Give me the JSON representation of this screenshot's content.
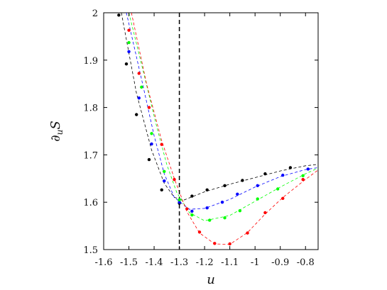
{
  "chart_data": {
    "type": "scatter",
    "title": "",
    "xlabel": "u",
    "ylabel": "∂uS",
    "ylabel_parts": {
      "main": "∂",
      "sub": "u",
      "tail": "S"
    },
    "xlim": [
      -1.6,
      -0.75
    ],
    "ylim": [
      1.5,
      2.0
    ],
    "x_ticks": [
      -1.6,
      -1.5,
      -1.4,
      -1.3,
      -1.2,
      -1.1,
      -1.0,
      -0.9,
      -0.8
    ],
    "x_tick_labels": [
      "-1.6",
      "-1.5",
      "-1.4",
      "-1.3",
      "-1.2",
      "-1.1",
      "-1",
      "-0.9",
      "-0.8"
    ],
    "y_ticks": [
      1.5,
      1.6,
      1.7,
      1.8,
      1.9,
      2.0
    ],
    "y_tick_labels": [
      "1.5",
      "1.6",
      "1.7",
      "1.8",
      "1.9",
      "2"
    ],
    "vertical_line": {
      "x": -1.3,
      "style": "dashed",
      "color": "#000000"
    },
    "grid": false,
    "series": [
      {
        "color": "#000000",
        "points": [
          [
            -1.54,
            1.995
          ],
          [
            -1.51,
            1.892
          ],
          [
            -1.47,
            1.785
          ],
          [
            -1.42,
            1.69
          ],
          [
            -1.37,
            1.626
          ],
          [
            -1.3,
            1.598
          ],
          [
            -1.25,
            1.613
          ],
          [
            -1.19,
            1.626
          ],
          [
            -1.12,
            1.635
          ],
          [
            -1.05,
            1.646
          ],
          [
            -0.96,
            1.66
          ],
          [
            -0.86,
            1.673
          ]
        ],
        "curve": [
          [
            -1.53,
            2.0
          ],
          [
            -1.47,
            1.83
          ],
          [
            -1.41,
            1.71
          ],
          [
            -1.36,
            1.64
          ],
          [
            -1.32,
            1.61
          ],
          [
            -1.28,
            1.605
          ],
          [
            -1.2,
            1.622
          ],
          [
            -1.1,
            1.638
          ],
          [
            -1.0,
            1.652
          ],
          [
            -0.9,
            1.666
          ],
          [
            -0.8,
            1.677
          ],
          [
            -0.75,
            1.68
          ]
        ]
      },
      {
        "color": "#0000ff",
        "points": [
          [
            -1.5,
            1.918
          ],
          [
            -1.46,
            1.82
          ],
          [
            -1.41,
            1.723
          ],
          [
            -1.36,
            1.645
          ],
          [
            -1.3,
            1.6
          ],
          [
            -1.25,
            1.581
          ],
          [
            -1.19,
            1.588
          ],
          [
            -1.13,
            1.6
          ],
          [
            -1.07,
            1.617
          ],
          [
            -0.99,
            1.635
          ],
          [
            -0.89,
            1.657
          ],
          [
            -0.79,
            1.67
          ]
        ],
        "curve": [
          [
            -1.51,
            2.0
          ],
          [
            -1.45,
            1.86
          ],
          [
            -1.4,
            1.74
          ],
          [
            -1.36,
            1.66
          ],
          [
            -1.32,
            1.61
          ],
          [
            -1.26,
            1.585
          ],
          [
            -1.2,
            1.587
          ],
          [
            -1.1,
            1.606
          ],
          [
            -1.0,
            1.632
          ],
          [
            -0.9,
            1.654
          ],
          [
            -0.8,
            1.669
          ],
          [
            -0.75,
            1.673
          ]
        ]
      },
      {
        "color": "#00ff00",
        "points": [
          [
            -1.5,
            1.937
          ],
          [
            -1.45,
            1.843
          ],
          [
            -1.41,
            1.745
          ],
          [
            -1.36,
            1.665
          ],
          [
            -1.3,
            1.605
          ],
          [
            -1.25,
            1.573
          ],
          [
            -1.18,
            1.562
          ],
          [
            -1.12,
            1.567
          ],
          [
            -1.06,
            1.582
          ],
          [
            -0.99,
            1.607
          ],
          [
            -0.91,
            1.628
          ],
          [
            -0.81,
            1.656
          ]
        ],
        "curve": [
          [
            -1.5,
            2.0
          ],
          [
            -1.44,
            1.87
          ],
          [
            -1.39,
            1.76
          ],
          [
            -1.35,
            1.68
          ],
          [
            -1.31,
            1.62
          ],
          [
            -1.26,
            1.578
          ],
          [
            -1.2,
            1.561
          ],
          [
            -1.1,
            1.572
          ],
          [
            -1.0,
            1.602
          ],
          [
            -0.9,
            1.632
          ],
          [
            -0.8,
            1.66
          ],
          [
            -0.75,
            1.672
          ]
        ]
      },
      {
        "color": "#ff0000",
        "points": [
          [
            -1.5,
            1.963
          ],
          [
            -1.46,
            1.872
          ],
          [
            -1.42,
            1.8
          ],
          [
            -1.37,
            1.722
          ],
          [
            -1.32,
            1.648
          ],
          [
            -1.27,
            1.586
          ],
          [
            -1.22,
            1.537
          ],
          [
            -1.16,
            1.513
          ],
          [
            -1.1,
            1.512
          ],
          [
            -1.03,
            1.535
          ],
          [
            -0.96,
            1.578
          ],
          [
            -0.89,
            1.608
          ],
          [
            -0.81,
            1.648
          ]
        ],
        "curve": [
          [
            -1.49,
            2.0
          ],
          [
            -1.43,
            1.85
          ],
          [
            -1.37,
            1.73
          ],
          [
            -1.32,
            1.65
          ],
          [
            -1.27,
            1.58
          ],
          [
            -1.22,
            1.535
          ],
          [
            -1.16,
            1.512
          ],
          [
            -1.1,
            1.511
          ],
          [
            -1.03,
            1.536
          ],
          [
            -0.96,
            1.575
          ],
          [
            -0.89,
            1.61
          ],
          [
            -0.8,
            1.648
          ],
          [
            -0.75,
            1.668
          ]
        ]
      }
    ]
  }
}
